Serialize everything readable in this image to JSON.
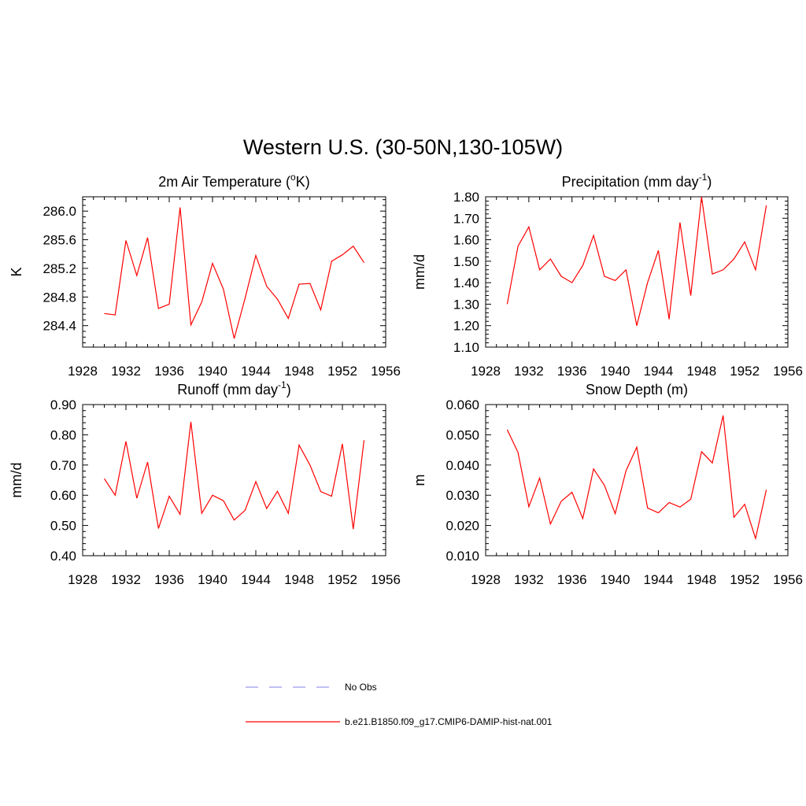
{
  "figure": {
    "title": "Western U.S. (30-50N,130-105W)"
  },
  "legend": {
    "items": [
      {
        "label": "No Obs",
        "color": "#9999ee",
        "style": "dashed"
      },
      {
        "label": "b.e21.B1850.f09_g17.CMIP6-DAMIP-hist-nat.001",
        "color": "#ff0000",
        "style": "solid"
      }
    ]
  },
  "chart_data": [
    {
      "type": "line",
      "title_parts": [
        "2m Air Temperature (",
        "o",
        "K)"
      ],
      "ylabel": "K",
      "xlim": [
        1928,
        1956
      ],
      "ylim": [
        284.1,
        286.2
      ],
      "xticks": [
        1928,
        1932,
        1936,
        1940,
        1944,
        1948,
        1952,
        1956
      ],
      "yticks": [
        "284.4",
        "284.8",
        "285.2",
        "285.6",
        "286.0"
      ],
      "grid": false,
      "series": [
        {
          "color": "#ff0000",
          "x": [
            1930,
            1931,
            1932,
            1933,
            1934,
            1935,
            1936,
            1937,
            1938,
            1939,
            1940,
            1941,
            1942,
            1943,
            1944,
            1945,
            1946,
            1947,
            1948,
            1949,
            1950,
            1951,
            1952,
            1953,
            1954
          ],
          "y": [
            284.57,
            284.55,
            285.59,
            285.1,
            285.63,
            284.64,
            284.7,
            286.05,
            284.41,
            284.73,
            285.27,
            284.91,
            284.22,
            284.78,
            285.38,
            284.95,
            284.77,
            284.5,
            284.98,
            284.99,
            284.62,
            285.3,
            285.39,
            285.51,
            285.28
          ]
        }
      ]
    },
    {
      "type": "line",
      "title_parts": [
        "Precipitation (mm day",
        "-1",
        ")"
      ],
      "ylabel": "mm/d",
      "xlim": [
        1928,
        1956
      ],
      "ylim": [
        1.1,
        1.8
      ],
      "xticks": [
        1928,
        1932,
        1936,
        1940,
        1944,
        1948,
        1952,
        1956
      ],
      "yticks": [
        "1.10",
        "1.20",
        "1.30",
        "1.40",
        "1.50",
        "1.60",
        "1.70",
        "1.80"
      ],
      "grid": false,
      "series": [
        {
          "color": "#ff0000",
          "x": [
            1930,
            1931,
            1932,
            1933,
            1934,
            1935,
            1936,
            1937,
            1938,
            1939,
            1940,
            1941,
            1942,
            1943,
            1944,
            1945,
            1946,
            1947,
            1948,
            1949,
            1950,
            1951,
            1952,
            1953,
            1954
          ],
          "y": [
            1.3,
            1.57,
            1.66,
            1.46,
            1.51,
            1.43,
            1.4,
            1.48,
            1.62,
            1.43,
            1.41,
            1.46,
            1.2,
            1.4,
            1.55,
            1.23,
            1.68,
            1.34,
            1.8,
            1.44,
            1.46,
            1.51,
            1.59,
            1.46,
            1.76
          ]
        }
      ]
    },
    {
      "type": "line",
      "title_parts": [
        "Runoff (mm day",
        "-1",
        ")"
      ],
      "ylabel": "mm/d",
      "xlim": [
        1928,
        1956
      ],
      "ylim": [
        0.4,
        0.9
      ],
      "xticks": [
        1928,
        1932,
        1936,
        1940,
        1944,
        1948,
        1952,
        1956
      ],
      "yticks": [
        "0.40",
        "0.50",
        "0.60",
        "0.70",
        "0.80",
        "0.90"
      ],
      "grid": false,
      "series": [
        {
          "color": "#ff0000",
          "x": [
            1930,
            1931,
            1932,
            1933,
            1934,
            1935,
            1936,
            1937,
            1938,
            1939,
            1940,
            1941,
            1942,
            1943,
            1944,
            1945,
            1946,
            1947,
            1948,
            1949,
            1950,
            1951,
            1952,
            1953,
            1954
          ],
          "y": [
            0.655,
            0.6,
            0.778,
            0.59,
            0.71,
            0.49,
            0.597,
            0.537,
            0.843,
            0.54,
            0.6,
            0.582,
            0.518,
            0.55,
            0.645,
            0.556,
            0.613,
            0.54,
            0.766,
            0.7,
            0.612,
            0.597,
            0.77,
            0.488,
            0.782
          ]
        }
      ]
    },
    {
      "type": "line",
      "title_parts": [
        "Snow Depth (m)"
      ],
      "ylabel": "m",
      "xlim": [
        1928,
        1956
      ],
      "ylim": [
        0.01,
        0.06
      ],
      "xticks": [
        1928,
        1932,
        1936,
        1940,
        1944,
        1948,
        1952,
        1956
      ],
      "yticks": [
        "0.010",
        "0.020",
        "0.030",
        "0.040",
        "0.050",
        "0.060"
      ],
      "grid": false,
      "series": [
        {
          "color": "#ff0000",
          "x": [
            1930,
            1931,
            1932,
            1933,
            1934,
            1935,
            1936,
            1937,
            1938,
            1939,
            1940,
            1941,
            1942,
            1943,
            1944,
            1945,
            1946,
            1947,
            1948,
            1949,
            1950,
            1951,
            1952,
            1953,
            1954
          ],
          "y": [
            0.0517,
            0.0442,
            0.0262,
            0.0357,
            0.0205,
            0.028,
            0.031,
            0.0223,
            0.0387,
            0.0333,
            0.0239,
            0.0381,
            0.0459,
            0.0258,
            0.0242,
            0.0276,
            0.0261,
            0.0287,
            0.0444,
            0.0407,
            0.0564,
            0.0227,
            0.027,
            0.0157,
            0.0318
          ]
        }
      ]
    }
  ]
}
